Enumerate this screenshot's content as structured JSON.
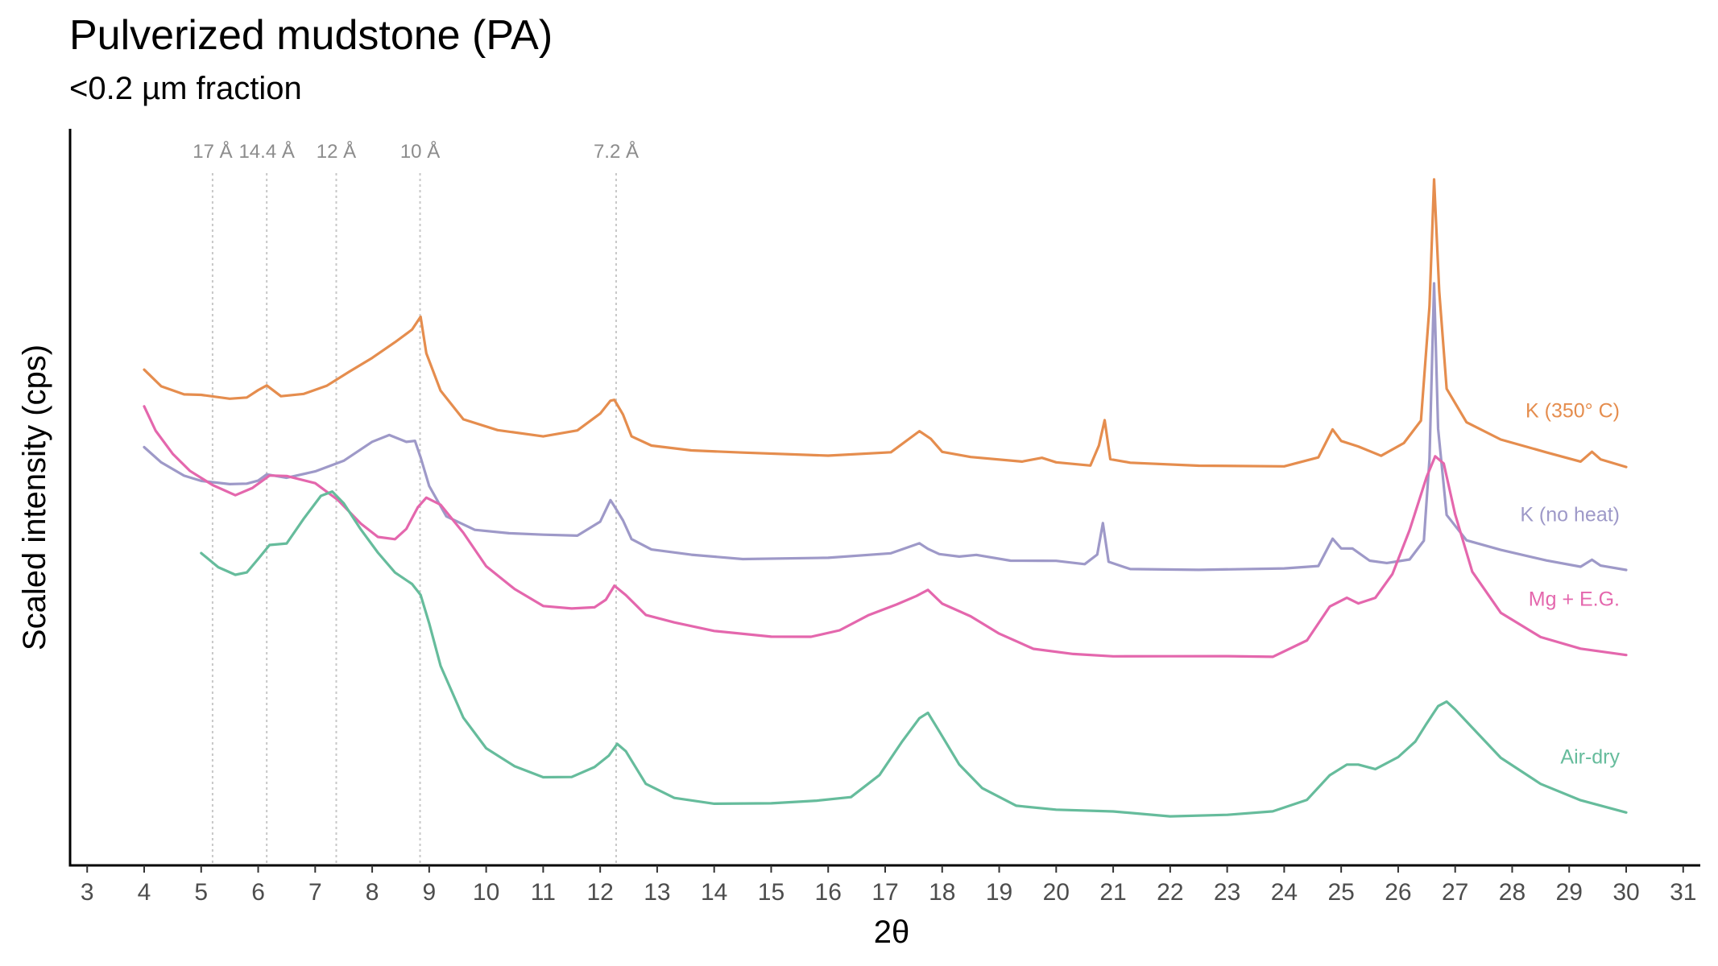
{
  "chart_data": {
    "type": "line",
    "title": "Pulverized mudstone (PA)",
    "subtitle": "<0.2 µm fraction",
    "xlabel": "2θ",
    "ylabel": "Scaled intensity (cps)",
    "xlim": [
      2.7,
      31.3
    ],
    "ylim": [
      0,
      1
    ],
    "x_ticks": [
      3,
      4,
      5,
      6,
      7,
      8,
      9,
      10,
      11,
      12,
      13,
      14,
      15,
      16,
      17,
      18,
      19,
      20,
      21,
      22,
      23,
      24,
      25,
      26,
      27,
      28,
      29,
      30,
      31
    ],
    "grid": false,
    "reference_lines": [
      {
        "x": 5.2,
        "label": "17 Å"
      },
      {
        "x": 6.15,
        "label": "14.4 Å"
      },
      {
        "x": 7.37,
        "label": "12 Å"
      },
      {
        "x": 8.84,
        "label": "10 Å"
      },
      {
        "x": 12.28,
        "label": "7.2 Å"
      }
    ],
    "series": [
      {
        "name": "K (350° C)",
        "color": "#e58d4e",
        "x": [
          4.0,
          4.3,
          4.7,
          5.0,
          5.5,
          5.8,
          6.0,
          6.15,
          6.4,
          6.8,
          7.2,
          7.6,
          8.0,
          8.4,
          8.7,
          8.85,
          8.95,
          9.2,
          9.6,
          10.2,
          11.0,
          11.6,
          12.0,
          12.18,
          12.25,
          12.4,
          12.55,
          12.9,
          13.6,
          14.5,
          16.0,
          17.1,
          17.6,
          17.8,
          18.0,
          18.5,
          19.4,
          19.75,
          20.0,
          20.6,
          20.75,
          20.85,
          20.95,
          21.3,
          22.5,
          24.0,
          24.6,
          24.85,
          25.0,
          25.3,
          25.7,
          26.1,
          26.4,
          26.55,
          26.63,
          26.72,
          26.85,
          27.2,
          27.8,
          28.6,
          29.2,
          29.4,
          29.55,
          30.0
        ],
        "values": [
          0.687,
          0.664,
          0.652,
          0.648,
          0.646,
          0.649,
          0.655,
          0.664,
          0.65,
          0.652,
          0.663,
          0.683,
          0.706,
          0.727,
          0.742,
          0.765,
          0.712,
          0.655,
          0.615,
          0.6,
          0.592,
          0.598,
          0.622,
          0.645,
          0.643,
          0.62,
          0.592,
          0.578,
          0.57,
          0.566,
          0.563,
          0.57,
          0.596,
          0.586,
          0.571,
          0.56,
          0.553,
          0.56,
          0.554,
          0.549,
          0.575,
          0.615,
          0.56,
          0.55,
          0.548,
          0.549,
          0.56,
          0.6,
          0.583,
          0.578,
          0.563,
          0.578,
          0.615,
          0.78,
          0.96,
          0.8,
          0.66,
          0.612,
          0.585,
          0.566,
          0.557,
          0.568,
          0.555,
          0.548
        ]
      },
      {
        "name": "K (no heat)",
        "color": "#9e99c8",
        "x": [
          4.0,
          4.3,
          4.7,
          5.0,
          5.5,
          5.8,
          6.0,
          6.15,
          6.5,
          7.0,
          7.5,
          8.0,
          8.3,
          8.6,
          8.75,
          8.85,
          9.0,
          9.3,
          9.8,
          10.4,
          11.0,
          11.6,
          12.0,
          12.18,
          12.25,
          12.4,
          12.55,
          12.9,
          13.6,
          14.5,
          16.0,
          17.1,
          17.6,
          17.75,
          17.95,
          18.3,
          18.6,
          19.2,
          19.75,
          20.0,
          20.5,
          20.72,
          20.82,
          20.92,
          21.3,
          22.5,
          24.0,
          24.6,
          24.85,
          25.0,
          25.2,
          25.5,
          25.8,
          26.2,
          26.45,
          26.55,
          26.63,
          26.7,
          26.85,
          27.2,
          27.8,
          28.6,
          29.2,
          29.4,
          29.55,
          30.0
        ],
        "values": [
          0.575,
          0.55,
          0.535,
          0.528,
          0.52,
          0.522,
          0.527,
          0.537,
          0.53,
          0.538,
          0.558,
          0.583,
          0.59,
          0.584,
          0.585,
          0.56,
          0.518,
          0.475,
          0.458,
          0.449,
          0.447,
          0.45,
          0.467,
          0.497,
          0.49,
          0.47,
          0.443,
          0.425,
          0.42,
          0.416,
          0.413,
          0.421,
          0.438,
          0.428,
          0.42,
          0.416,
          0.421,
          0.412,
          0.408,
          0.412,
          0.408,
          0.418,
          0.465,
          0.41,
          0.4,
          0.397,
          0.398,
          0.406,
          0.443,
          0.426,
          0.43,
          0.412,
          0.407,
          0.412,
          0.44,
          0.56,
          0.81,
          0.6,
          0.48,
          0.44,
          0.425,
          0.412,
          0.403,
          0.413,
          0.402,
          0.398
        ]
      },
      {
        "name": "Mg + E.G.",
        "color": "#e467ad",
        "x": [
          4.0,
          4.2,
          4.5,
          4.8,
          5.2,
          5.6,
          5.9,
          6.2,
          6.5,
          7.0,
          7.4,
          7.8,
          8.1,
          8.4,
          8.6,
          8.8,
          8.95,
          9.2,
          9.6,
          10.0,
          10.5,
          11.0,
          11.5,
          11.9,
          12.1,
          12.25,
          12.45,
          12.8,
          13.3,
          14.0,
          15.0,
          15.7,
          16.2,
          16.7,
          17.2,
          17.55,
          17.75,
          18.0,
          18.5,
          19.0,
          19.6,
          20.3,
          21.0,
          22.0,
          23.0,
          23.8,
          24.4,
          24.8,
          25.1,
          25.3,
          25.6,
          25.9,
          26.2,
          26.5,
          26.65,
          26.8,
          27.0,
          27.3,
          27.8,
          28.5,
          29.2,
          30.0
        ],
        "values": [
          0.634,
          0.6,
          0.565,
          0.54,
          0.52,
          0.508,
          0.515,
          0.532,
          0.536,
          0.523,
          0.497,
          0.465,
          0.446,
          0.443,
          0.455,
          0.488,
          0.505,
          0.49,
          0.45,
          0.405,
          0.37,
          0.345,
          0.341,
          0.345,
          0.356,
          0.372,
          0.362,
          0.335,
          0.32,
          0.309,
          0.302,
          0.302,
          0.31,
          0.33,
          0.35,
          0.361,
          0.366,
          0.35,
          0.332,
          0.305,
          0.283,
          0.276,
          0.275,
          0.272,
          0.271,
          0.275,
          0.296,
          0.343,
          0.358,
          0.35,
          0.358,
          0.39,
          0.455,
          0.535,
          0.56,
          0.55,
          0.48,
          0.395,
          0.335,
          0.3,
          0.285,
          0.276
        ]
      },
      {
        "name": "Air-dry",
        "color": "#66bc9c",
        "x": [
          5.0,
          5.3,
          5.6,
          5.8,
          6.0,
          6.2,
          6.5,
          6.8,
          7.1,
          7.3,
          7.5,
          7.8,
          8.1,
          8.4,
          8.7,
          8.85,
          9.0,
          9.2,
          9.6,
          10.0,
          10.5,
          11.0,
          11.5,
          11.9,
          12.15,
          12.3,
          12.45,
          12.8,
          13.3,
          14.0,
          15.0,
          15.8,
          16.4,
          16.9,
          17.3,
          17.6,
          17.75,
          17.95,
          18.3,
          18.7,
          19.3,
          20.0,
          21.0,
          22.0,
          23.0,
          23.8,
          24.4,
          24.8,
          25.1,
          25.3,
          25.6,
          26.0,
          26.3,
          26.5,
          26.7,
          26.85,
          27.0,
          27.3,
          27.8,
          28.5,
          29.2,
          30.0
        ],
        "values": [
          0.422,
          0.4,
          0.39,
          0.397,
          0.412,
          0.432,
          0.438,
          0.472,
          0.504,
          0.51,
          0.495,
          0.458,
          0.42,
          0.394,
          0.38,
          0.36,
          0.32,
          0.26,
          0.185,
          0.14,
          0.112,
          0.1,
          0.1,
          0.11,
          0.13,
          0.148,
          0.135,
          0.088,
          0.068,
          0.062,
          0.06,
          0.062,
          0.072,
          0.102,
          0.148,
          0.184,
          0.192,
          0.165,
          0.115,
          0.082,
          0.06,
          0.05,
          0.047,
          0.044,
          0.044,
          0.048,
          0.065,
          0.102,
          0.118,
          0.114,
          0.11,
          0.13,
          0.148,
          0.175,
          0.202,
          0.208,
          0.196,
          0.168,
          0.128,
          0.09,
          0.062,
          0.048
        ]
      }
    ]
  }
}
